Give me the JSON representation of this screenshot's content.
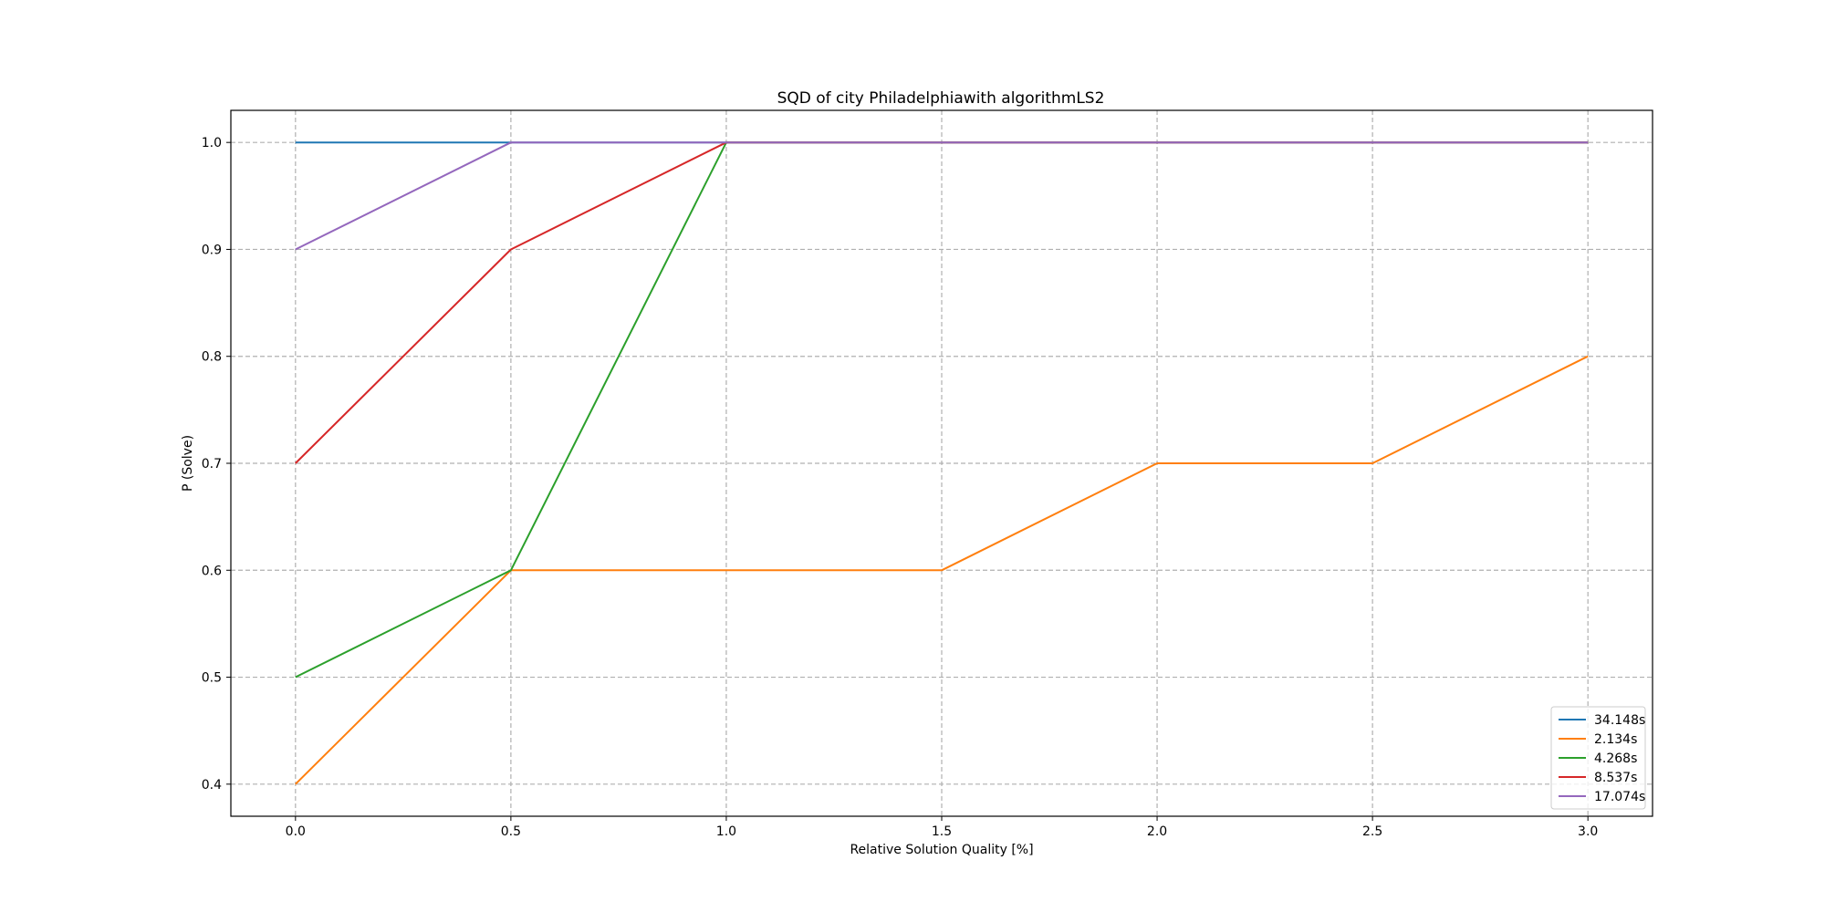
{
  "chart_data": {
    "type": "line",
    "title": "SQD of city Philadelphiawith algorithmLS2",
    "xlabel": "Relative Solution Quality [%]",
    "ylabel": "P (Solve)",
    "x": [
      0.0,
      0.5,
      1.0,
      1.5,
      2.0,
      2.5,
      3.0
    ],
    "xlim": [
      -0.15,
      3.15
    ],
    "ylim": [
      0.37,
      1.03
    ],
    "xticks": [
      0.0,
      0.5,
      1.0,
      1.5,
      2.0,
      2.5,
      3.0
    ],
    "xtick_labels": [
      "0.0",
      "0.5",
      "1.0",
      "1.5",
      "2.0",
      "2.5",
      "3.0"
    ],
    "yticks": [
      0.4,
      0.5,
      0.6,
      0.7,
      0.8,
      0.9,
      1.0
    ],
    "ytick_labels": [
      "0.4",
      "0.5",
      "0.6",
      "0.7",
      "0.8",
      "0.9",
      "1.0"
    ],
    "grid": true,
    "legend_position": "bottom-right",
    "series": [
      {
        "name": "34.148s",
        "color": "#1f77b4",
        "values": [
          1.0,
          1.0,
          1.0,
          1.0,
          1.0,
          1.0,
          1.0
        ]
      },
      {
        "name": "2.134s",
        "color": "#ff7f0e",
        "values": [
          0.4,
          0.6,
          0.6,
          0.6,
          0.7,
          0.7,
          0.8
        ]
      },
      {
        "name": "4.268s",
        "color": "#2ca02c",
        "values": [
          0.5,
          0.6,
          1.0,
          1.0,
          1.0,
          1.0,
          1.0
        ]
      },
      {
        "name": "8.537s",
        "color": "#d62728",
        "values": [
          0.7,
          0.9,
          1.0,
          1.0,
          1.0,
          1.0,
          1.0
        ]
      },
      {
        "name": "17.074s",
        "color": "#9467bd",
        "values": [
          0.9,
          1.0,
          1.0,
          1.0,
          1.0,
          1.0,
          1.0
        ]
      }
    ]
  }
}
